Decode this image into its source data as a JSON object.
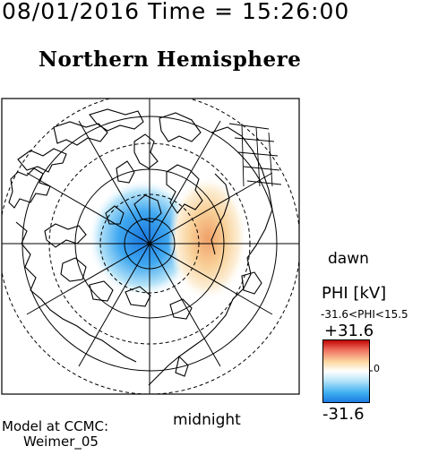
{
  "header": {
    "timestamp": "08/01/2016 Time = 15:26:00",
    "title": "Northern Hemisphere"
  },
  "map": {
    "projection": "polar",
    "labels": {
      "dawn": "dawn",
      "midnight": "midnight"
    },
    "colors": {
      "negative": "#2e9aec",
      "positive": "#f0c070",
      "coast": "#000000"
    }
  },
  "colorbar": {
    "title": "PHI [kV]",
    "range_text": "-31.6<PHI<15.5",
    "max_label": "+31.6",
    "min_label": "-31.6",
    "zero_label": "0",
    "colors": [
      "#c00000",
      "#f07060",
      "#fbd8a0",
      "#ffffff",
      "#b8e4f8",
      "#40b0f0",
      "#1a78e0"
    ]
  },
  "footer": {
    "model_line1": "Model at CCMC:",
    "model_line2": "Weimer_05"
  }
}
